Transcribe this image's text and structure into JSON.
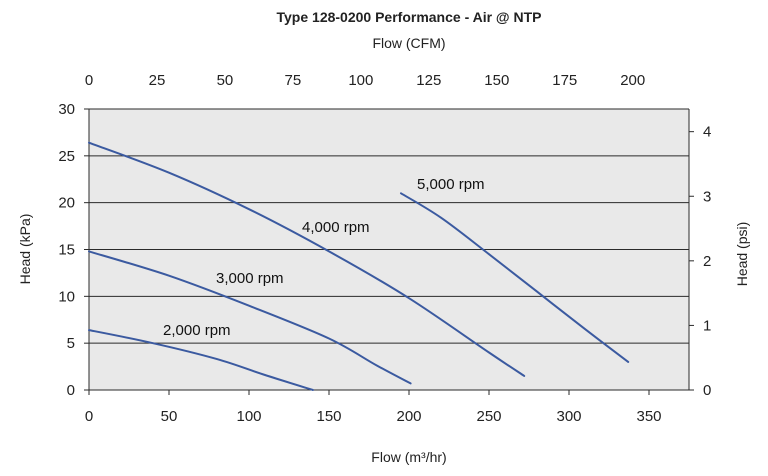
{
  "chart_data": {
    "type": "line",
    "title": "Type 128-0200 Performance - Air @ NTP",
    "xlabel": "Flow (m³/hr)",
    "xlabel_top": "Flow (CFM)",
    "ylabel": "Head (kPa)",
    "ylabel_right": "Head (psi)",
    "xlim": [
      0,
      375
    ],
    "ylim": [
      0,
      30
    ],
    "xlim_top": [
      0,
      220.7
    ],
    "ylim_right": [
      0,
      4.351
    ],
    "x_ticks": [
      0,
      50,
      100,
      150,
      200,
      250,
      300,
      350
    ],
    "y_ticks": [
      0,
      5,
      10,
      15,
      20,
      25,
      30
    ],
    "x_ticks_top": [
      0,
      25,
      50,
      75,
      100,
      125,
      150,
      175,
      200
    ],
    "y_ticks_right": [
      0,
      1,
      2,
      3,
      4
    ],
    "grid": "horizontal",
    "legend": "none",
    "series": [
      {
        "name": "2,000 rpm",
        "x": [
          0,
          40,
          80,
          110,
          140
        ],
        "y": [
          6.4,
          5.0,
          3.3,
          1.6,
          0
        ]
      },
      {
        "name": "3,000 rpm",
        "x": [
          0,
          50,
          100,
          150,
          180,
          201
        ],
        "y": [
          14.8,
          12.2,
          9.0,
          5.5,
          2.6,
          0.7
        ]
      },
      {
        "name": "4,000 rpm",
        "x": [
          0,
          50,
          100,
          150,
          200,
          250,
          272
        ],
        "y": [
          26.4,
          23.2,
          19.3,
          14.8,
          9.8,
          4.0,
          1.5
        ]
      },
      {
        "name": "5,000 rpm",
        "x": [
          195,
          220,
          250,
          280,
          310,
          337
        ],
        "y": [
          21.0,
          18.4,
          14.5,
          10.5,
          6.5,
          3.0
        ]
      }
    ]
  }
}
